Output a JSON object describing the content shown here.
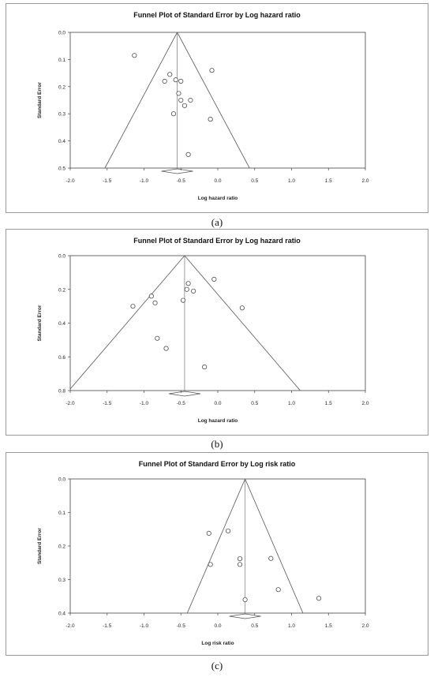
{
  "chart_data": [
    {
      "type": "scatter",
      "title": "Funnel Plot of Standard Error by Log hazard ratio",
      "xlabel": "Log hazard ratio",
      "ylabel": "Standard Error",
      "xlim": [
        -2.0,
        2.0
      ],
      "ylim": [
        0.0,
        0.5
      ],
      "x_ticks": [
        "-2.0",
        "-1.5",
        "-1.0",
        "-0.5",
        "0.0",
        "0.5",
        "1.0",
        "1.5",
        "2.0"
      ],
      "y_ticks": [
        "0.0",
        "0.1",
        "0.2",
        "0.3",
        "0.4",
        "0.5"
      ],
      "y_inverted": true,
      "pooled_estimate": -0.55,
      "points": [
        {
          "x": -1.13,
          "y": 0.085
        },
        {
          "x": -0.65,
          "y": 0.155
        },
        {
          "x": -0.72,
          "y": 0.18
        },
        {
          "x": -0.57,
          "y": 0.175
        },
        {
          "x": -0.5,
          "y": 0.18
        },
        {
          "x": -0.08,
          "y": 0.14
        },
        {
          "x": -0.53,
          "y": 0.225
        },
        {
          "x": -0.5,
          "y": 0.25
        },
        {
          "x": -0.45,
          "y": 0.27
        },
        {
          "x": -0.37,
          "y": 0.25
        },
        {
          "x": -0.6,
          "y": 0.3
        },
        {
          "x": -0.1,
          "y": 0.32
        },
        {
          "x": -0.4,
          "y": 0.45
        }
      ],
      "caption": "(a)"
    },
    {
      "type": "scatter",
      "title": "Funnel Plot of Standard Error by Log hazard ratio",
      "xlabel": "Log hazard ratio",
      "ylabel": "Standard Error",
      "xlim": [
        -2.0,
        2.0
      ],
      "ylim": [
        0.0,
        0.8
      ],
      "x_ticks": [
        "-2.0",
        "-1.5",
        "-1.0",
        "-0.5",
        "0.0",
        "0.5",
        "1.0",
        "1.5",
        "2.0"
      ],
      "y_ticks": [
        "0.0",
        "0.2",
        "0.4",
        "0.6",
        "0.8"
      ],
      "y_inverted": true,
      "pooled_estimate": -0.45,
      "points": [
        {
          "x": -0.05,
          "y": 0.14
        },
        {
          "x": -0.4,
          "y": 0.165
        },
        {
          "x": -0.42,
          "y": 0.2
        },
        {
          "x": -0.33,
          "y": 0.21
        },
        {
          "x": -0.9,
          "y": 0.24
        },
        {
          "x": -0.47,
          "y": 0.265
        },
        {
          "x": -0.85,
          "y": 0.28
        },
        {
          "x": -1.15,
          "y": 0.3
        },
        {
          "x": 0.33,
          "y": 0.31
        },
        {
          "x": -0.82,
          "y": 0.49
        },
        {
          "x": -0.7,
          "y": 0.55
        },
        {
          "x": -0.18,
          "y": 0.66
        }
      ],
      "caption": "(b)"
    },
    {
      "type": "scatter",
      "title": "Funnel Plot of Standard Error by Log risk ratio",
      "xlabel": "Log risk ratio",
      "ylabel": "Standard Error",
      "xlim": [
        -2.0,
        2.0
      ],
      "ylim": [
        0.0,
        0.4
      ],
      "x_ticks": [
        "-2.0",
        "-1.5",
        "-1.0",
        "-0.5",
        "0.0",
        "0.5",
        "1.0",
        "1.5",
        "2.0"
      ],
      "y_ticks": [
        "0.0",
        "0.1",
        "0.2",
        "0.3",
        "0.4"
      ],
      "y_inverted": true,
      "pooled_estimate": 0.37,
      "points": [
        {
          "x": -0.12,
          "y": 0.162
        },
        {
          "x": 0.14,
          "y": 0.155
        },
        {
          "x": -0.1,
          "y": 0.255
        },
        {
          "x": 0.3,
          "y": 0.238
        },
        {
          "x": 0.3,
          "y": 0.255
        },
        {
          "x": 0.72,
          "y": 0.237
        },
        {
          "x": 0.82,
          "y": 0.33
        },
        {
          "x": 0.37,
          "y": 0.36
        },
        {
          "x": 1.37,
          "y": 0.356
        }
      ],
      "caption": "(c)"
    }
  ]
}
